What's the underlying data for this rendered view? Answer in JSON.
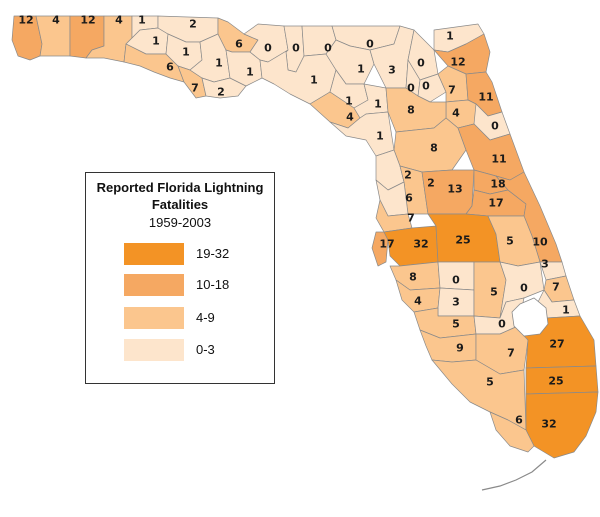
{
  "colors": {
    "0-3": "#fde5cc",
    "4-9": "#fbc68e",
    "10-18": "#f5a862",
    "19-32": "#f39325",
    "border": "#8a8a8a"
  },
  "legend": {
    "title_line1": "Reported Florida Lightning",
    "title_line2": "Fatalities",
    "years": "1959-2003",
    "classes": [
      {
        "label": "19-32",
        "color": "#f39325"
      },
      {
        "label": "10-18",
        "color": "#f5a862"
      },
      {
        "label": "4-9",
        "color": "#fbc68e"
      },
      {
        "label": "0-3",
        "color": "#fde5cc"
      }
    ]
  },
  "county_values": {
    "escambia": "12",
    "santa_rosa": "4",
    "okaloosa": "12",
    "walton": "4",
    "holmes": "1",
    "jackson": "2",
    "washington": "1",
    "bay": "6",
    "calhoun": "1",
    "gulf": "7",
    "franklin": "2",
    "liberty": "1",
    "gadsden": "6",
    "wakulla": "1",
    "leon": "0",
    "jefferson": "0",
    "madison": "0",
    "taylor": "1",
    "hamilton": "0",
    "suwannee": "1",
    "columbia": "3",
    "lafayette": "1",
    "dixie": "4",
    "gilchrist": "1",
    "levy": "1",
    "alachua": "8",
    "union": "0",
    "bradford": "0",
    "baker": "0",
    "nassau": "1",
    "duval": "12",
    "clay": "7",
    "st_johns": "11",
    "putnam": "4",
    "flagler": "0",
    "marion": "8",
    "citrus": "2",
    "volusia": "11",
    "lake": "13",
    "hernando": "2",
    "sumter": "6",
    "seminole": "18",
    "orange": "17",
    "pasco": "7",
    "pinellas": "17",
    "hillsborough": "32",
    "polk": "25",
    "osceola": "5",
    "brevard": "10",
    "indian_river": "3",
    "manatee": "8",
    "hardee": "0",
    "highlands": "5",
    "okeechobee": "0",
    "st_lucie": "7",
    "martin": "1",
    "sarasota": "4",
    "desoto": "3",
    "glades": "0",
    "charlotte": "5",
    "lee": "9",
    "hendry": "7",
    "palm_beach": "27",
    "collier": "5",
    "broward": "25",
    "monroe": "6",
    "miami_dade": "32"
  }
}
